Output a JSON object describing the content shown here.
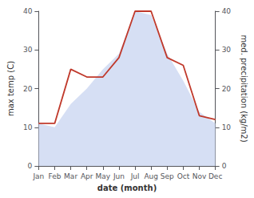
{
  "chart_data": {
    "type": "line",
    "xlabel": "date (month)",
    "ylabel": "max temp (C)",
    "y2label": "med. precipitation (kg/m2)",
    "categories": [
      "Jan",
      "Feb",
      "Mar",
      "Apr",
      "May",
      "Jun",
      "Jul",
      "Aug",
      "Sep",
      "Oct",
      "Nov",
      "Dec"
    ],
    "series": [
      {
        "type": "area",
        "color": "#c8d4f0",
        "values": [
          11,
          10,
          16,
          20,
          25,
          29,
          40,
          39,
          29,
          22,
          14,
          11
        ]
      },
      {
        "type": "line",
        "color": "#c0392b",
        "axis": "y2",
        "values": [
          11,
          11,
          25,
          23,
          23,
          28,
          40,
          40,
          28,
          26,
          13,
          12
        ]
      }
    ],
    "ylim": [
      0,
      40
    ],
    "yticks": [
      0,
      10,
      20,
      30,
      40
    ],
    "y2lim": [
      0,
      40
    ],
    "y2ticks": [
      0,
      10,
      20,
      30,
      40
    ],
    "grid": false
  }
}
